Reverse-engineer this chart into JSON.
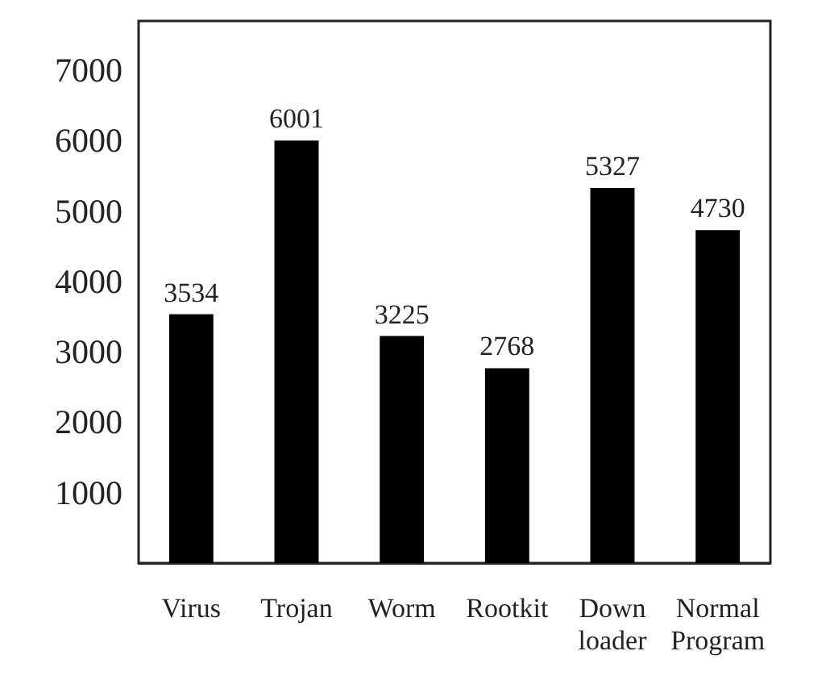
{
  "chart_data": {
    "type": "bar",
    "categories": [
      "Virus",
      "Trojan",
      "Worm",
      "Rootkit",
      "Down\nloader",
      "Normal\nProgram"
    ],
    "values": [
      3534,
      6001,
      3225,
      2768,
      5327,
      4730
    ],
    "color": "#000000",
    "ylim": [
      0,
      7700
    ],
    "yticks": [
      1000,
      2000,
      3000,
      4000,
      5000,
      6000,
      7000
    ],
    "data_labels": true
  }
}
